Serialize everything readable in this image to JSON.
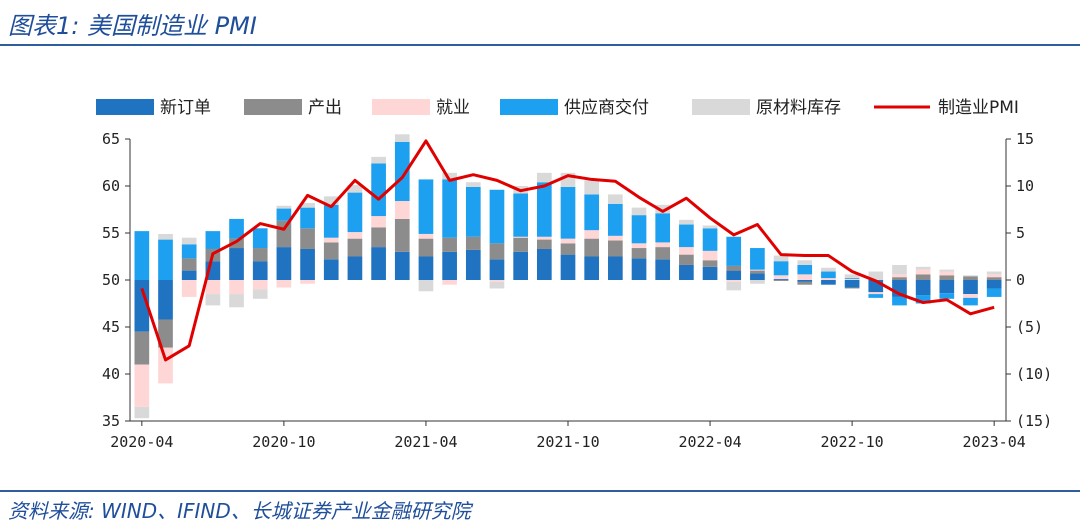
{
  "title": "图表1:  美国制造业 PMI",
  "source": "资料来源:  WIND、IFIND、长城证券产业金融研究院",
  "colors": {
    "new_orders": "#1f73c0",
    "production": "#8c8c8c",
    "employment": "#ffd6d6",
    "supplier_deliveries": "#1ea0f0",
    "inventories": "#d9d9d9",
    "pmi": "#e00000",
    "axis_right_negative": "#c00000",
    "rule": "#2f5f9f"
  },
  "chart_data": {
    "type": "bar",
    "stacked": true,
    "legend_position": "top",
    "grid": false,
    "x": [
      "2020-04",
      "2020-05",
      "2020-06",
      "2020-07",
      "2020-08",
      "2020-09",
      "2020-10",
      "2020-11",
      "2020-12",
      "2021-01",
      "2021-02",
      "2021-03",
      "2021-04",
      "2021-05",
      "2021-06",
      "2021-07",
      "2021-08",
      "2021-09",
      "2021-10",
      "2021-11",
      "2021-12",
      "2022-01",
      "2022-02",
      "2022-03",
      "2022-04",
      "2022-05",
      "2022-06",
      "2022-07",
      "2022-08",
      "2022-09",
      "2022-10",
      "2022-11",
      "2022-12",
      "2023-01",
      "2023-02",
      "2023-03",
      "2023-04"
    ],
    "x_tick_labels": [
      "2020-04",
      "2020-10",
      "2021-04",
      "2021-10",
      "2022-04",
      "2022-10",
      "2023-04"
    ],
    "left_axis": {
      "min": 35,
      "max": 65,
      "ticks": [
        35,
        40,
        45,
        50,
        55,
        60,
        65
      ],
      "baseline": 50
    },
    "right_axis": {
      "min": -15,
      "max": 15,
      "ticks": [
        15,
        10,
        5,
        0,
        -5,
        -10,
        -15
      ],
      "tick_labels": [
        "15",
        "10",
        "5",
        "0",
        "(5)",
        "(10)",
        "(15)"
      ]
    },
    "series": [
      {
        "name": "新订单",
        "values": [
          -5.5,
          -4.2,
          1.0,
          2.0,
          3.4,
          2.0,
          3.5,
          3.3,
          2.2,
          2.5,
          3.5,
          3.0,
          2.5,
          3.0,
          3.2,
          2.2,
          3.0,
          3.3,
          2.7,
          2.5,
          2.5,
          2.3,
          2.2,
          1.6,
          1.4,
          1.0,
          0.7,
          0.1,
          -0.2,
          -0.5,
          -0.8,
          -1.3,
          -1.8,
          -1.6,
          -1.4,
          -1.5,
          -0.9
        ]
      },
      {
        "name": "产出",
        "values": [
          -3.5,
          -3.0,
          1.3,
          1.3,
          1.0,
          1.4,
          2.8,
          2.2,
          1.8,
          1.9,
          2.1,
          3.5,
          1.9,
          1.5,
          1.4,
          1.7,
          1.5,
          1.0,
          1.2,
          1.9,
          1.7,
          1.1,
          1.3,
          1.1,
          0.7,
          0.5,
          0.3,
          -0.1,
          -0.3,
          0,
          -0.1,
          0,
          0.3,
          0.6,
          0.5,
          0.4,
          0.3
        ]
      },
      {
        "name": "就业",
        "values": [
          -4.5,
          -3.8,
          -1.8,
          -1.5,
          -1.5,
          -1.0,
          -0.8,
          -0.4,
          0.5,
          0.7,
          1.2,
          1.9,
          0.5,
          -0.5,
          0,
          -0.2,
          0.1,
          0.3,
          0.5,
          0.9,
          0.5,
          0.5,
          0.5,
          0.8,
          1.0,
          -0.2,
          0.1,
          0.4,
          0.6,
          0.2,
          0.1,
          -0.2,
          0.3,
          0.5,
          0.4,
          -0.4,
          0.3
        ]
      },
      {
        "name": "供应商交付",
        "values": [
          5.2,
          4.3,
          1.5,
          1.9,
          2.1,
          2.1,
          1.3,
          2.2,
          3.5,
          4.2,
          5.6,
          6.3,
          5.8,
          6.2,
          5.3,
          5.7,
          4.6,
          5.8,
          5.5,
          3.8,
          3.4,
          3.0,
          3.1,
          2.4,
          2.4,
          3.1,
          2.3,
          1.5,
          1.0,
          0.7,
          0.1,
          -0.4,
          -0.9,
          -0.9,
          -0.6,
          -0.8,
          -0.9
        ]
      },
      {
        "name": "原材料库存",
        "values": [
          -1.2,
          0.6,
          0.7,
          -1.2,
          -1.4,
          -1.0,
          0.3,
          0.5,
          0.9,
          0.8,
          0.7,
          0.8,
          -1.2,
          0.7,
          0.5,
          -0.7,
          0.8,
          1.0,
          1.5,
          1.5,
          1.0,
          0.8,
          0.9,
          0.5,
          0.3,
          -0.9,
          -0.4,
          0.6,
          0.5,
          0.4,
          0.4,
          0.9,
          1.0,
          0.3,
          0.2,
          0.1,
          0.3
        ]
      },
      {
        "name": "制造业PMI",
        "type": "line",
        "axis": "right",
        "values": [
          -0.9,
          -8.5,
          -7.0,
          2.8,
          4.1,
          6.0,
          5.4,
          9.0,
          7.8,
          10.6,
          8.6,
          10.9,
          14.8,
          10.6,
          11.2,
          10.6,
          9.5,
          10.0,
          11.1,
          10.7,
          10.5,
          8.8,
          7.3,
          8.7,
          6.6,
          4.8,
          5.9,
          2.7,
          2.6,
          2.6,
          0.9,
          -0.1,
          -1.5,
          -2.4,
          -2.1,
          -3.6,
          -2.9
        ]
      }
    ]
  }
}
